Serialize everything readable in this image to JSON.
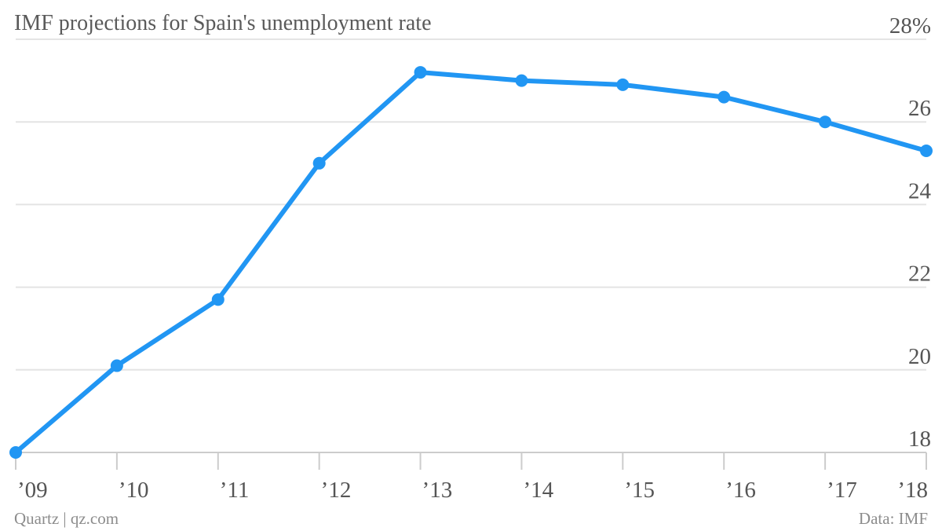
{
  "title": "IMF projections for Spain's unemployment rate",
  "footer": {
    "source_left": "Quartz | qz.com",
    "source_right": "Data: IMF"
  },
  "colors": {
    "line": "#2196f3",
    "grid": "#e4e4e4",
    "axis": "#cccccc",
    "text": "#555555"
  },
  "chart_data": {
    "type": "line",
    "title": "IMF projections for Spain's unemployment rate",
    "x": [
      "’09",
      "’10",
      "’11",
      "’12",
      "’13",
      "’14",
      "’15",
      "’16",
      "’17",
      "’18"
    ],
    "series": [
      {
        "values": [
          18.0,
          20.1,
          21.7,
          25.0,
          27.2,
          27.0,
          26.9,
          26.6,
          26.0,
          25.3
        ]
      }
    ],
    "ylim": [
      18,
      28
    ],
    "yticks": [
      "18",
      "20",
      "22",
      "24",
      "26",
      "28%"
    ],
    "y_axis_side": "right",
    "grid": true
  }
}
